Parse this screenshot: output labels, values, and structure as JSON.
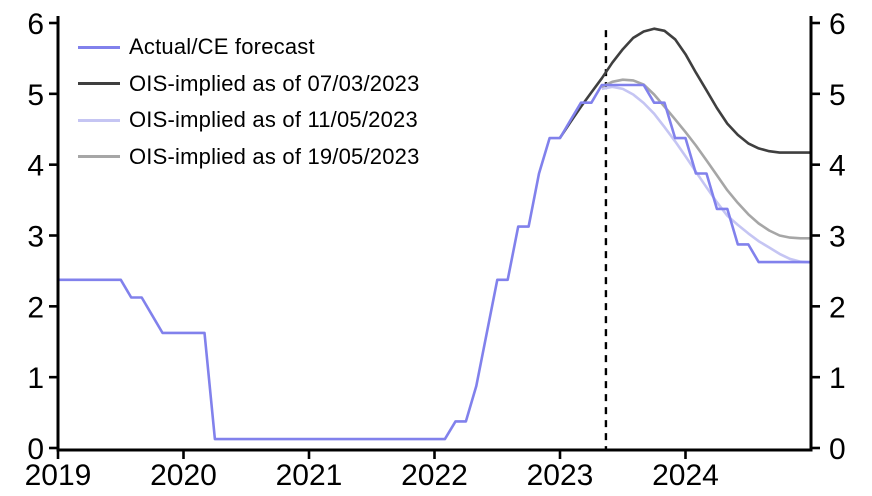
{
  "figure": {
    "background_color": "#ffffff",
    "axis_color": "#000000",
    "text_color": "#000000"
  },
  "chart_data": {
    "type": "line",
    "title": "",
    "xlabel": "",
    "ylabel": "",
    "xlim": [
      2019,
      2025
    ],
    "ylim": [
      0,
      6
    ],
    "x_tick_labels": [
      "2019",
      "2020",
      "2021",
      "2022",
      "2023",
      "2024"
    ],
    "x_tick_values": [
      2019,
      2020,
      2021,
      2022,
      2023,
      2024
    ],
    "y_tick_labels": [
      "0",
      "1",
      "2",
      "3",
      "4",
      "5",
      "6"
    ],
    "y_tick_values": [
      0,
      1,
      2,
      3,
      4,
      5,
      6
    ],
    "dual_y_axis": true,
    "grid": false,
    "legend_position": "top-left-inside",
    "forecast_divider": {
      "x": 2023.366,
      "y_top": 5.9,
      "color": "#000000",
      "style": "dashed"
    },
    "series": [
      {
        "name": "Actual/CE forecast",
        "color": "#8181ec",
        "style": "solid",
        "points": [
          [
            2019.0,
            2.375
          ],
          [
            2019.083,
            2.375
          ],
          [
            2019.167,
            2.375
          ],
          [
            2019.25,
            2.375
          ],
          [
            2019.333,
            2.375
          ],
          [
            2019.417,
            2.375
          ],
          [
            2019.5,
            2.375
          ],
          [
            2019.583,
            2.125
          ],
          [
            2019.667,
            2.125
          ],
          [
            2019.75,
            1.875
          ],
          [
            2019.833,
            1.625
          ],
          [
            2019.917,
            1.625
          ],
          [
            2020.0,
            1.625
          ],
          [
            2020.083,
            1.625
          ],
          [
            2020.167,
            1.625
          ],
          [
            2020.25,
            0.125
          ],
          [
            2020.333,
            0.125
          ],
          [
            2020.417,
            0.125
          ],
          [
            2020.5,
            0.125
          ],
          [
            2020.583,
            0.125
          ],
          [
            2020.667,
            0.125
          ],
          [
            2020.75,
            0.125
          ],
          [
            2020.833,
            0.125
          ],
          [
            2020.917,
            0.125
          ],
          [
            2021.0,
            0.125
          ],
          [
            2021.083,
            0.125
          ],
          [
            2021.167,
            0.125
          ],
          [
            2021.25,
            0.125
          ],
          [
            2021.333,
            0.125
          ],
          [
            2021.417,
            0.125
          ],
          [
            2021.5,
            0.125
          ],
          [
            2021.583,
            0.125
          ],
          [
            2021.667,
            0.125
          ],
          [
            2021.75,
            0.125
          ],
          [
            2021.833,
            0.125
          ],
          [
            2021.917,
            0.125
          ],
          [
            2022.0,
            0.125
          ],
          [
            2022.083,
            0.125
          ],
          [
            2022.167,
            0.375
          ],
          [
            2022.25,
            0.375
          ],
          [
            2022.333,
            0.875
          ],
          [
            2022.417,
            1.625
          ],
          [
            2022.5,
            2.375
          ],
          [
            2022.583,
            2.375
          ],
          [
            2022.667,
            3.125
          ],
          [
            2022.75,
            3.125
          ],
          [
            2022.833,
            3.875
          ],
          [
            2022.917,
            4.375
          ],
          [
            2023.0,
            4.375
          ],
          [
            2023.083,
            4.625
          ],
          [
            2023.167,
            4.875
          ],
          [
            2023.25,
            4.875
          ],
          [
            2023.333,
            5.125
          ],
          [
            2023.417,
            5.125
          ],
          [
            2023.5,
            5.125
          ],
          [
            2023.583,
            5.125
          ],
          [
            2023.667,
            5.125
          ],
          [
            2023.75,
            4.875
          ],
          [
            2023.833,
            4.875
          ],
          [
            2023.917,
            4.375
          ],
          [
            2024.0,
            4.375
          ],
          [
            2024.083,
            3.875
          ],
          [
            2024.167,
            3.875
          ],
          [
            2024.25,
            3.375
          ],
          [
            2024.333,
            3.375
          ],
          [
            2024.417,
            2.875
          ],
          [
            2024.5,
            2.875
          ],
          [
            2024.583,
            2.625
          ],
          [
            2024.667,
            2.625
          ],
          [
            2024.75,
            2.625
          ],
          [
            2024.833,
            2.625
          ],
          [
            2024.917,
            2.625
          ],
          [
            2025.0,
            2.625
          ],
          [
            2025.0,
            2.27
          ]
        ]
      },
      {
        "name": "OIS-implied as of 07/03/2023",
        "color": "#3f3f3f",
        "style": "solid",
        "points": [
          [
            2023.0,
            4.38
          ],
          [
            2023.083,
            4.6
          ],
          [
            2023.167,
            4.82
          ],
          [
            2023.25,
            5.02
          ],
          [
            2023.333,
            5.22
          ],
          [
            2023.417,
            5.44
          ],
          [
            2023.5,
            5.63
          ],
          [
            2023.583,
            5.79
          ],
          [
            2023.667,
            5.88
          ],
          [
            2023.75,
            5.92
          ],
          [
            2023.833,
            5.89
          ],
          [
            2023.917,
            5.77
          ],
          [
            2024.0,
            5.56
          ],
          [
            2024.083,
            5.3
          ],
          [
            2024.167,
            5.05
          ],
          [
            2024.25,
            4.8
          ],
          [
            2024.333,
            4.58
          ],
          [
            2024.417,
            4.42
          ],
          [
            2024.5,
            4.3
          ],
          [
            2024.583,
            4.23
          ],
          [
            2024.667,
            4.19
          ],
          [
            2024.75,
            4.17
          ],
          [
            2024.833,
            4.17
          ],
          [
            2024.917,
            4.17
          ],
          [
            2025.0,
            4.17
          ]
        ]
      },
      {
        "name": "OIS-implied as of 11/05/2023",
        "color": "#c5c5f3",
        "style": "solid",
        "points": [
          [
            2023.333,
            5.07
          ],
          [
            2023.417,
            5.1
          ],
          [
            2023.5,
            5.07
          ],
          [
            2023.583,
            4.99
          ],
          [
            2023.667,
            4.87
          ],
          [
            2023.75,
            4.72
          ],
          [
            2023.833,
            4.53
          ],
          [
            2023.917,
            4.33
          ],
          [
            2024.0,
            4.12
          ],
          [
            2024.083,
            3.9
          ],
          [
            2024.167,
            3.68
          ],
          [
            2024.25,
            3.47
          ],
          [
            2024.333,
            3.28
          ],
          [
            2024.417,
            3.15
          ],
          [
            2024.5,
            3.03
          ],
          [
            2024.583,
            2.92
          ],
          [
            2024.667,
            2.83
          ],
          [
            2024.75,
            2.74
          ],
          [
            2024.833,
            2.67
          ],
          [
            2024.917,
            2.63
          ],
          [
            2025.0,
            2.62
          ]
        ]
      },
      {
        "name": "OIS-implied as of 19/05/2023",
        "color": "#a6a6a6",
        "style": "solid",
        "points": [
          [
            2023.333,
            5.1
          ],
          [
            2023.417,
            5.17
          ],
          [
            2023.5,
            5.2
          ],
          [
            2023.583,
            5.19
          ],
          [
            2023.667,
            5.13
          ],
          [
            2023.75,
            4.99
          ],
          [
            2023.833,
            4.82
          ],
          [
            2023.917,
            4.64
          ],
          [
            2024.0,
            4.46
          ],
          [
            2024.083,
            4.27
          ],
          [
            2024.167,
            4.06
          ],
          [
            2024.25,
            3.85
          ],
          [
            2024.333,
            3.64
          ],
          [
            2024.417,
            3.46
          ],
          [
            2024.5,
            3.3
          ],
          [
            2024.583,
            3.17
          ],
          [
            2024.667,
            3.07
          ],
          [
            2024.75,
            3.0
          ],
          [
            2024.833,
            2.97
          ],
          [
            2024.917,
            2.96
          ],
          [
            2025.0,
            2.96
          ]
        ]
      }
    ]
  }
}
